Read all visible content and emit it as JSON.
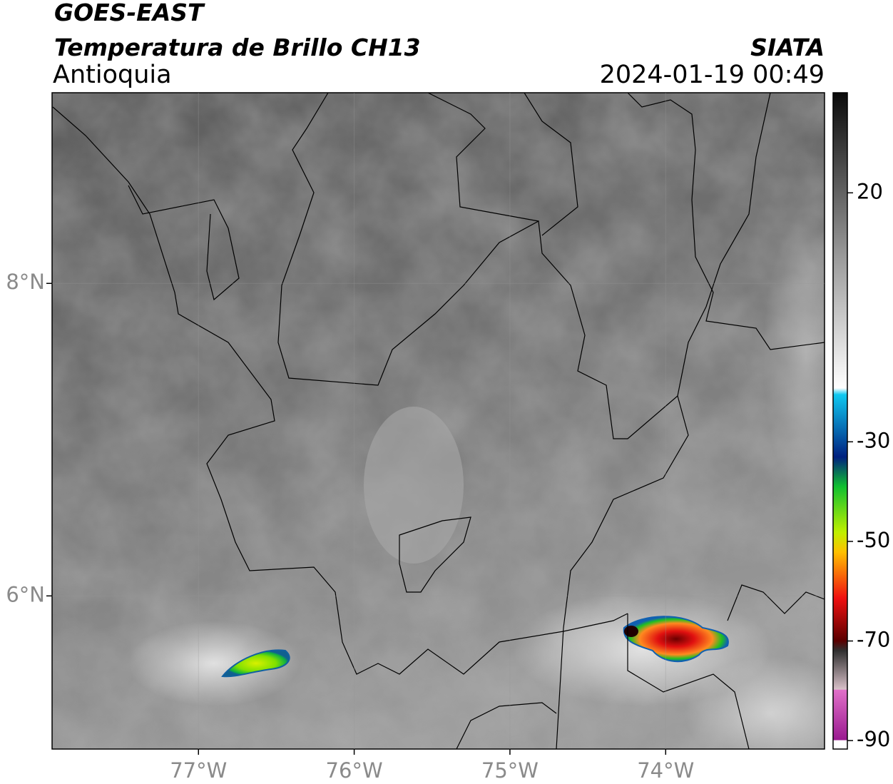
{
  "header": {
    "line1": "GOES-EAST",
    "line2": "Temperatura de Brillo CH13",
    "region": "Antioquia",
    "source": "SIATA",
    "datetime": "2024-01-19 00:49"
  },
  "map": {
    "xlim": [
      -77.94,
      -72.98
    ],
    "ylim": [
      5.02,
      9.22
    ],
    "xticks": [
      {
        "value": -77,
        "label": "77°W"
      },
      {
        "value": -76,
        "label": "76°W"
      },
      {
        "value": -75,
        "label": "75°W"
      },
      {
        "value": -74,
        "label": "74°W"
      }
    ],
    "yticks": [
      {
        "value": 8,
        "label": "8°N"
      },
      {
        "value": 6,
        "label": "6°N"
      }
    ],
    "grid": true
  },
  "colorbar": {
    "ylim": [
      -91.7,
      40.1
    ],
    "yticks": [
      20,
      -30,
      -50,
      -70,
      -90
    ]
  }
}
